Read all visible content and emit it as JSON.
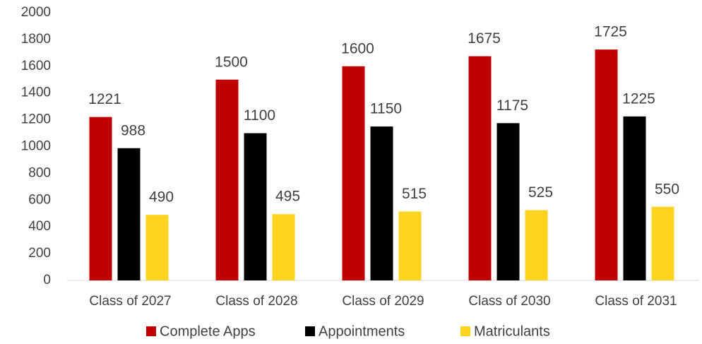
{
  "chart_data": {
    "type": "bar",
    "categories": [
      "Class of 2027",
      "Class of 2028",
      "Class of 2029",
      "Class of 2030",
      "Class of 2031"
    ],
    "series": [
      {
        "name": "Complete Apps",
        "color": "#c00000",
        "values": [
          1221,
          1500,
          1600,
          1675,
          1725
        ]
      },
      {
        "name": "Appointments",
        "color": "#000000",
        "values": [
          988,
          1100,
          1150,
          1175,
          1225
        ]
      },
      {
        "name": "Matriculants",
        "color": "#ffd320",
        "values": [
          490,
          495,
          515,
          525,
          550
        ]
      }
    ],
    "ylim": [
      0,
      2000
    ],
    "yticks": [
      0,
      200,
      400,
      600,
      800,
      1000,
      1200,
      1400,
      1600,
      1800,
      2000
    ],
    "grid": false,
    "legend": "bottom"
  }
}
